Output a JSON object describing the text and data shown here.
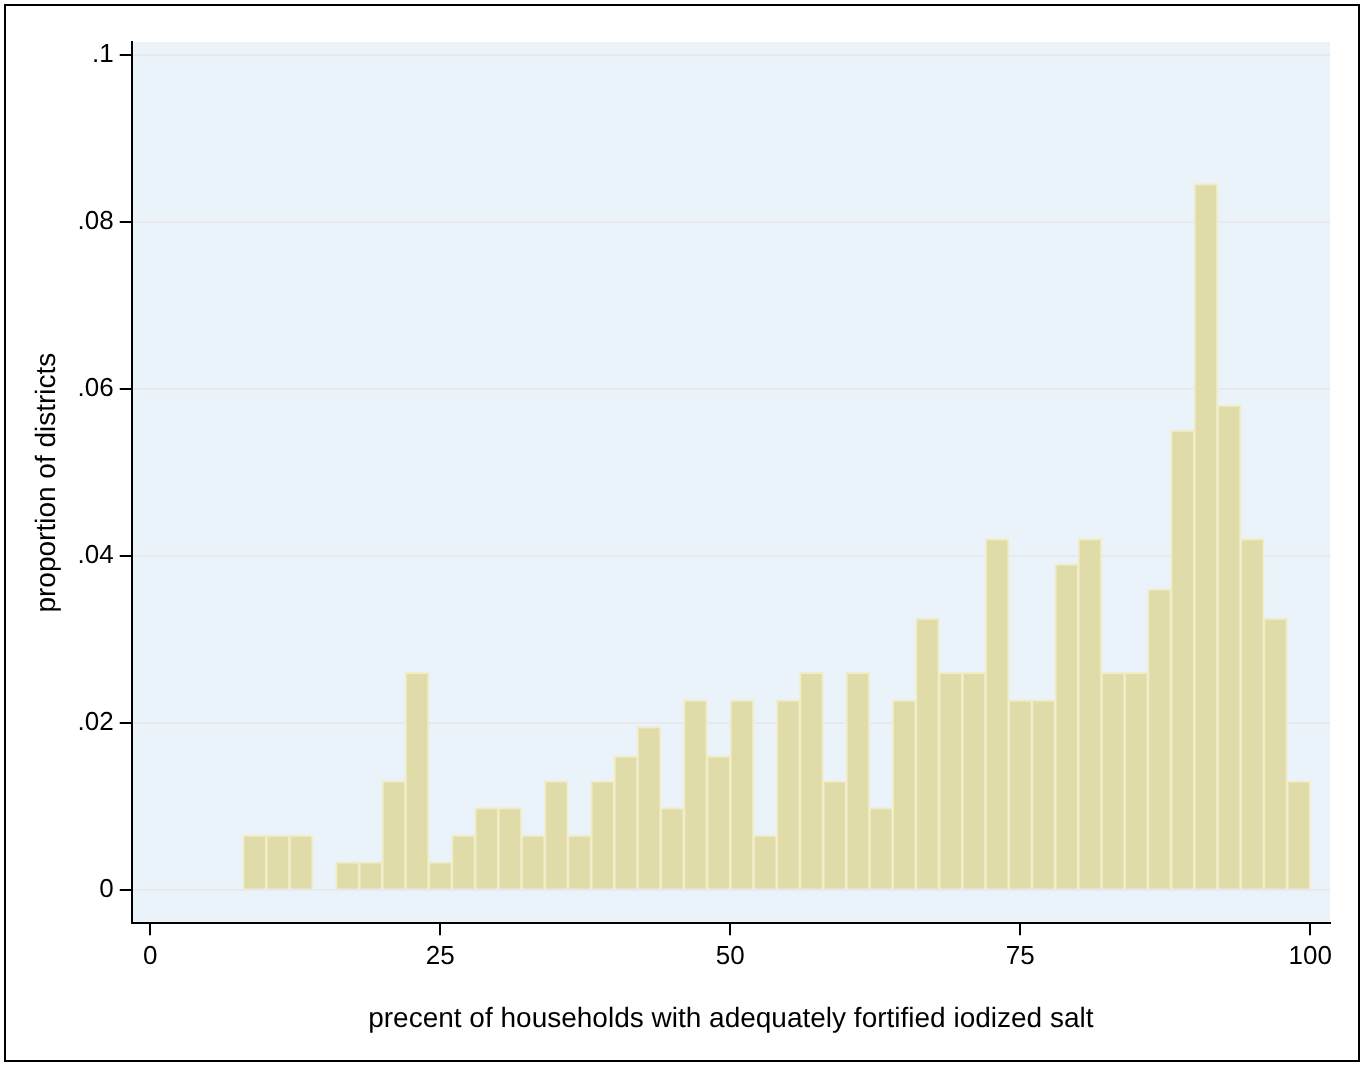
{
  "chart_data": {
    "type": "histogram",
    "xlabel": "precent of households with adequately fortified iodized salt",
    "ylabel": "proportion of districts",
    "bins": [
      8,
      10,
      12,
      14,
      16,
      18,
      20,
      22,
      24,
      26,
      28,
      30,
      32,
      34,
      36,
      38,
      40,
      42,
      44,
      46,
      48,
      50,
      52,
      54,
      56,
      58,
      60,
      62,
      64,
      66,
      68,
      70,
      72,
      74,
      76,
      78,
      80,
      82,
      84,
      86,
      88,
      90,
      92,
      94,
      96,
      98,
      100
    ],
    "values": [
      0.0065,
      0.0065,
      0.0065,
      0,
      0.0033,
      0.0033,
      0.013,
      0.026,
      0.0033,
      0.0065,
      0.0098,
      0.0098,
      0.0065,
      0.013,
      0.0065,
      0.013,
      0.016,
      0.0195,
      0.0098,
      0.0227,
      0.016,
      0.0227,
      0.0065,
      0.0227,
      0.026,
      0.013,
      0.026,
      0.0098,
      0.0227,
      0.0325,
      0.026,
      0.026,
      0.042,
      0.0227,
      0.0227,
      0.039,
      0.042,
      0.026,
      0.026,
      0.036,
      0.055,
      0.0845,
      0.058,
      0.042,
      0.0325,
      0.013
    ],
    "color": "#e0dca9",
    "xlim": [
      -1.6,
      101.7
    ],
    "xticks": [
      0,
      25,
      50,
      75,
      100
    ],
    "ylim": [
      -0.004,
      0.1015
    ],
    "yticks": [
      {
        "value": 0,
        "label": "0"
      },
      {
        "value": 0.02,
        "label": ".02"
      },
      {
        "value": 0.04,
        "label": ".04"
      },
      {
        "value": 0.06,
        "label": ".06"
      },
      {
        "value": 0.08,
        "label": ".08"
      },
      {
        "value": 0.1,
        "label": ".1"
      }
    ],
    "grid": "y",
    "legend": false
  }
}
